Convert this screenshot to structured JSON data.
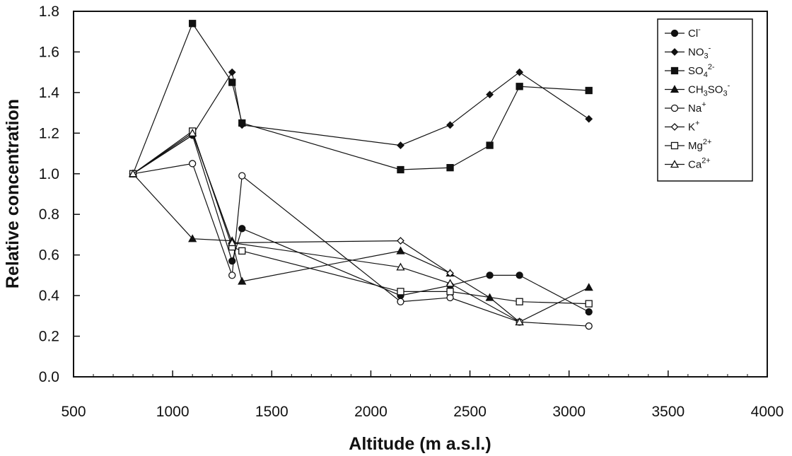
{
  "chart_data": {
    "type": "line",
    "title": "",
    "xlabel": "Altitude (m a.s.l.)",
    "ylabel": "Relative concentration",
    "xlim": [
      500,
      4000
    ],
    "ylim": [
      0.0,
      1.8
    ],
    "xticks": [
      500,
      1000,
      1500,
      2000,
      2500,
      3000,
      3500,
      4000
    ],
    "yticks": [
      "0.0",
      "0.2",
      "0.4",
      "0.6",
      "0.8",
      "1.0",
      "1.2",
      "1.4",
      "1.6",
      "1.8"
    ],
    "grid": false,
    "legend_position": "top-right",
    "series": [
      {
        "name": "Cl",
        "sup": "-",
        "sub": "",
        "sup2": "",
        "marker": "filled-circle",
        "points": [
          [
            800,
            1.0
          ],
          [
            1100,
            1.19
          ],
          [
            1300,
            0.57
          ],
          [
            1350,
            0.73
          ],
          [
            2150,
            0.4
          ],
          [
            2400,
            0.45
          ],
          [
            2600,
            0.5
          ],
          [
            2750,
            0.5
          ],
          [
            3100,
            0.32
          ]
        ]
      },
      {
        "name": "NO",
        "sub": "3",
        "sup": "-",
        "sup2": "",
        "marker": "filled-diamond",
        "points": [
          [
            800,
            1.0
          ],
          [
            1100,
            1.19
          ],
          [
            1300,
            1.5
          ],
          [
            1350,
            1.24
          ],
          [
            2150,
            1.14
          ],
          [
            2400,
            1.24
          ],
          [
            2600,
            1.39
          ],
          [
            2750,
            1.5
          ],
          [
            3100,
            1.27
          ]
        ]
      },
      {
        "name": "SO",
        "sub": "4",
        "sup": "2-",
        "sup2": "",
        "marker": "filled-square",
        "points": [
          [
            800,
            1.0
          ],
          [
            1100,
            1.74
          ],
          [
            1300,
            1.45
          ],
          [
            1350,
            1.25
          ],
          [
            2150,
            1.02
          ],
          [
            2400,
            1.03
          ],
          [
            2600,
            1.14
          ],
          [
            2750,
            1.43
          ],
          [
            3100,
            1.41
          ]
        ]
      },
      {
        "name": "CH",
        "sub": "3",
        "mid": "SO",
        "sub2": "3",
        "sup": "-",
        "sup2": "",
        "marker": "filled-triangle",
        "points": [
          [
            800,
            1.0
          ],
          [
            1100,
            0.68
          ],
          [
            1300,
            0.67
          ],
          [
            1350,
            0.47
          ],
          [
            2150,
            0.62
          ],
          [
            2400,
            0.51
          ],
          [
            2600,
            0.39
          ],
          [
            2750,
            0.27
          ],
          [
            3100,
            0.44
          ]
        ]
      },
      {
        "name": "Na",
        "sup": "+",
        "sub": "",
        "sup2": "",
        "marker": "open-circle",
        "points": [
          [
            800,
            1.0
          ],
          [
            1100,
            1.05
          ],
          [
            1300,
            0.5
          ],
          [
            1350,
            0.99
          ],
          [
            2150,
            0.37
          ],
          [
            2400,
            0.39
          ],
          [
            2750,
            0.27
          ],
          [
            3100,
            0.25
          ]
        ]
      },
      {
        "name": "K",
        "sup": "+",
        "sub": "",
        "sup2": "",
        "marker": "open-diamond",
        "points": [
          [
            800,
            1.0
          ],
          [
            1100,
            1.2
          ],
          [
            1300,
            0.66
          ],
          [
            2150,
            0.67
          ],
          [
            2400,
            0.51
          ]
        ]
      },
      {
        "name": "Mg",
        "sup": "2+",
        "sub": "",
        "sup2": "",
        "marker": "open-square",
        "points": [
          [
            800,
            1.0
          ],
          [
            1100,
            1.21
          ],
          [
            1300,
            0.64
          ],
          [
            1350,
            0.62
          ],
          [
            2150,
            0.42
          ],
          [
            2400,
            0.42
          ],
          [
            2750,
            0.37
          ],
          [
            3100,
            0.36
          ]
        ]
      },
      {
        "name": "Ca",
        "sup": "2+",
        "sub": "",
        "sup2": "",
        "marker": "open-triangle",
        "points": [
          [
            800,
            1.0
          ],
          [
            1100,
            1.2
          ],
          [
            1300,
            0.66
          ],
          [
            2150,
            0.54
          ],
          [
            2400,
            0.46
          ],
          [
            2750,
            0.27
          ]
        ]
      }
    ]
  }
}
